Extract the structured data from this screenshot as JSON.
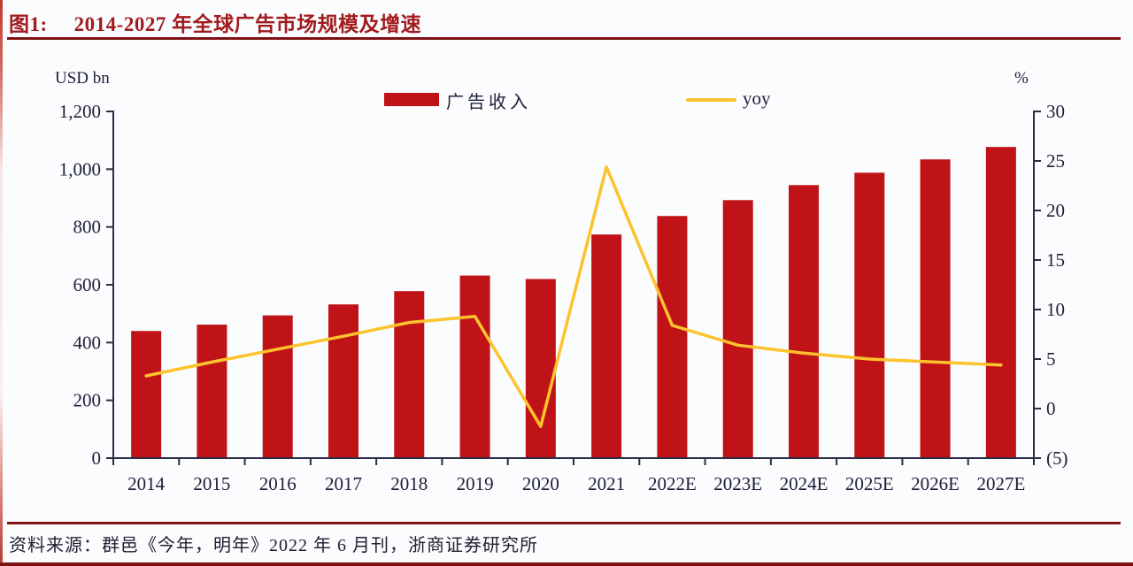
{
  "page": {
    "figure_label": "图1:",
    "title": "2014-2027 年全球广告市场规模及增速",
    "source": "资料来源：群邑《今年，明年》2022 年 6 月刊，浙商证券研究所"
  },
  "colors": {
    "bar": "#c01318",
    "line": "#fcc32d",
    "title": "#a01b1e",
    "rule": "#7e1113",
    "axis": "#2c2c44",
    "text": "#20203a",
    "background": "#fbfcfe"
  },
  "chart_data": {
    "type": "bar",
    "title": "2014-2027 年全球广告市场规模及增速",
    "categories": [
      "2014",
      "2015",
      "2016",
      "2017",
      "2018",
      "2019",
      "2020",
      "2021",
      "2022E",
      "2023E",
      "2024E",
      "2025E",
      "2026E",
      "2027E"
    ],
    "series": [
      {
        "name": "广告收入",
        "type": "bar",
        "axis": "left",
        "unit": "USD bn",
        "values": [
          440,
          462,
          494,
          532,
          578,
          632,
          620,
          774,
          838,
          893,
          945,
          988,
          1034,
          1077
        ]
      },
      {
        "name": "yoy",
        "type": "line",
        "axis": "right",
        "unit": "%",
        "values": [
          3.3,
          4.7,
          6.0,
          7.3,
          8.7,
          9.3,
          -1.8,
          24.4,
          8.4,
          6.4,
          5.6,
          5.0,
          4.7,
          4.4
        ]
      }
    ],
    "left_axis": {
      "label": "USD bn",
      "min": 0,
      "max": 1200,
      "step": 200,
      "tick_labels": [
        "0",
        "200",
        "400",
        "600",
        "800",
        "1,000",
        "1,200"
      ]
    },
    "right_axis": {
      "label": "%",
      "min": -5,
      "max": 30,
      "step": 5,
      "tick_labels": [
        "(5)",
        "0",
        "5",
        "10",
        "15",
        "20",
        "25",
        "30"
      ]
    },
    "legend": [
      {
        "label": "广告收入",
        "swatch": "bar"
      },
      {
        "label": "yoy",
        "swatch": "line"
      }
    ],
    "legend_position": "top-center",
    "grid": false
  }
}
